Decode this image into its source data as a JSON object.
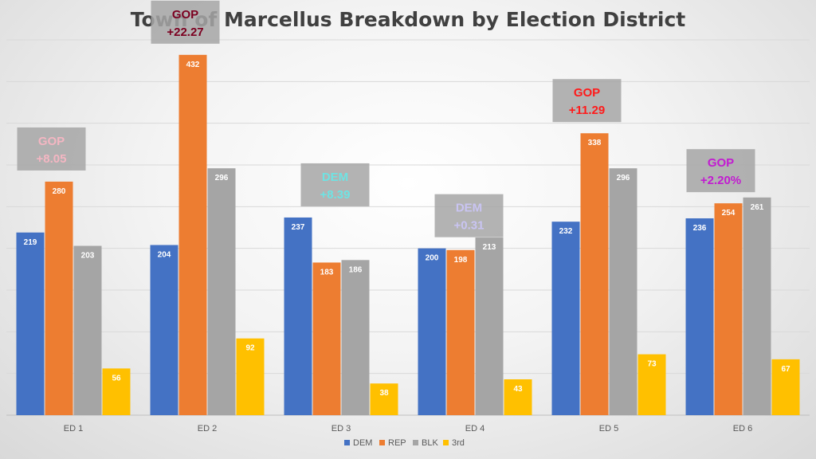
{
  "chart_data": {
    "type": "bar",
    "title": "Town of Marcellus Breakdown by Election District",
    "xlabel": "",
    "ylabel": "",
    "ylim": [
      0,
      450
    ],
    "grid": true,
    "legend_position": "bottom",
    "categories": [
      "ED 1",
      "ED 2",
      "ED 3",
      "ED 4",
      "ED 5",
      "ED 6"
    ],
    "series": [
      {
        "name": "DEM",
        "color": "#4472c4",
        "values": [
          219,
          204,
          237,
          200,
          232,
          236
        ]
      },
      {
        "name": "REP",
        "color": "#ed7d31",
        "values": [
          280,
          432,
          183,
          198,
          338,
          254
        ]
      },
      {
        "name": "BLK",
        "color": "#a5a5a5",
        "values": [
          203,
          296,
          186,
          213,
          296,
          261
        ]
      },
      {
        "name": "3rd",
        "color": "#ffc000",
        "values": [
          56,
          92,
          38,
          43,
          73,
          67
        ]
      }
    ],
    "annotations": [
      {
        "category": "ED 1",
        "line1": "GOP",
        "line2": "+8.05",
        "color": "#f4b6c2"
      },
      {
        "category": "ED 2",
        "line1": "GOP",
        "line2": "+22.27",
        "color": "#7b0020"
      },
      {
        "category": "ED 3",
        "line1": "DEM",
        "line2": "+8.39",
        "color": "#6fe3e3"
      },
      {
        "category": "ED 4",
        "line1": "DEM",
        "line2": "+0.31",
        "color": "#c9c4f2"
      },
      {
        "category": "ED 5",
        "line1": "GOP",
        "line2": "+11.29",
        "color": "#ff1a1a"
      },
      {
        "category": "ED 6",
        "line1": "GOP",
        "line2": "+2.20%",
        "color": "#c21bd1"
      }
    ]
  }
}
